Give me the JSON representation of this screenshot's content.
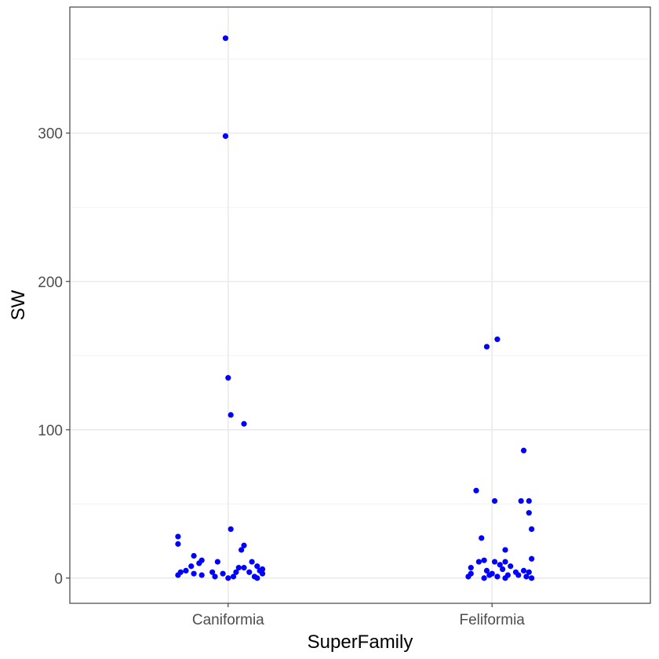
{
  "chart_data": {
    "type": "scatter",
    "xlabel": "SuperFamily",
    "ylabel": "SW",
    "categories": [
      "Caniformia",
      "Feliformia"
    ],
    "ylim": [
      -17,
      385
    ],
    "y_ticks": [
      0,
      100,
      200,
      300
    ],
    "y_tick_labels": [
      "0",
      "100",
      "200",
      "300"
    ],
    "grid": true,
    "point_color": "#0000ff",
    "series": [
      {
        "category": "Caniformia",
        "points": [
          {
            "x": 0.99,
            "y": 364
          },
          {
            "x": 0.99,
            "y": 298
          },
          {
            "x": 1.0,
            "y": 135
          },
          {
            "x": 1.01,
            "y": 110
          },
          {
            "x": 1.06,
            "y": 104
          },
          {
            "x": 1.01,
            "y": 33
          },
          {
            "x": 0.81,
            "y": 28
          },
          {
            "x": 0.81,
            "y": 23
          },
          {
            "x": 1.06,
            "y": 22
          },
          {
            "x": 1.05,
            "y": 19
          },
          {
            "x": 0.87,
            "y": 15
          },
          {
            "x": 0.9,
            "y": 12
          },
          {
            "x": 0.96,
            "y": 11
          },
          {
            "x": 1.09,
            "y": 11
          },
          {
            "x": 0.89,
            "y": 10
          },
          {
            "x": 0.86,
            "y": 8
          },
          {
            "x": 1.11,
            "y": 8
          },
          {
            "x": 1.04,
            "y": 7
          },
          {
            "x": 1.06,
            "y": 7
          },
          {
            "x": 1.13,
            "y": 6
          },
          {
            "x": 0.84,
            "y": 5
          },
          {
            "x": 1.12,
            "y": 5
          },
          {
            "x": 0.82,
            "y": 4
          },
          {
            "x": 0.94,
            "y": 4
          },
          {
            "x": 1.03,
            "y": 4
          },
          {
            "x": 1.08,
            "y": 4
          },
          {
            "x": 0.87,
            "y": 3
          },
          {
            "x": 0.98,
            "y": 3
          },
          {
            "x": 1.13,
            "y": 3
          },
          {
            "x": 0.81,
            "y": 2
          },
          {
            "x": 0.9,
            "y": 2
          },
          {
            "x": 0.95,
            "y": 1
          },
          {
            "x": 1.02,
            "y": 1
          },
          {
            "x": 1.1,
            "y": 1
          },
          {
            "x": 1.0,
            "y": 0
          },
          {
            "x": 1.11,
            "y": 0
          }
        ]
      },
      {
        "category": "Feliformia",
        "points": [
          {
            "x": 2.02,
            "y": 161
          },
          {
            "x": 1.98,
            "y": 156
          },
          {
            "x": 2.12,
            "y": 86
          },
          {
            "x": 1.94,
            "y": 59
          },
          {
            "x": 2.01,
            "y": 52
          },
          {
            "x": 2.11,
            "y": 52
          },
          {
            "x": 2.14,
            "y": 52
          },
          {
            "x": 2.14,
            "y": 44
          },
          {
            "x": 2.15,
            "y": 33
          },
          {
            "x": 1.96,
            "y": 27
          },
          {
            "x": 2.05,
            "y": 19
          },
          {
            "x": 2.15,
            "y": 13
          },
          {
            "x": 1.97,
            "y": 12
          },
          {
            "x": 2.01,
            "y": 11
          },
          {
            "x": 2.05,
            "y": 11
          },
          {
            "x": 1.95,
            "y": 11
          },
          {
            "x": 2.03,
            "y": 9
          },
          {
            "x": 2.07,
            "y": 8
          },
          {
            "x": 1.92,
            "y": 7
          },
          {
            "x": 2.04,
            "y": 6
          },
          {
            "x": 1.98,
            "y": 5
          },
          {
            "x": 2.12,
            "y": 5
          },
          {
            "x": 2.09,
            "y": 4
          },
          {
            "x": 2.14,
            "y": 4
          },
          {
            "x": 2.0,
            "y": 3
          },
          {
            "x": 1.92,
            "y": 3
          },
          {
            "x": 2.06,
            "y": 2
          },
          {
            "x": 2.1,
            "y": 2
          },
          {
            "x": 1.99,
            "y": 2
          },
          {
            "x": 2.02,
            "y": 1
          },
          {
            "x": 2.13,
            "y": 1
          },
          {
            "x": 1.91,
            "y": 1
          },
          {
            "x": 1.97,
            "y": 0
          },
          {
            "x": 2.05,
            "y": 0
          },
          {
            "x": 2.15,
            "y": 0
          }
        ]
      }
    ]
  }
}
